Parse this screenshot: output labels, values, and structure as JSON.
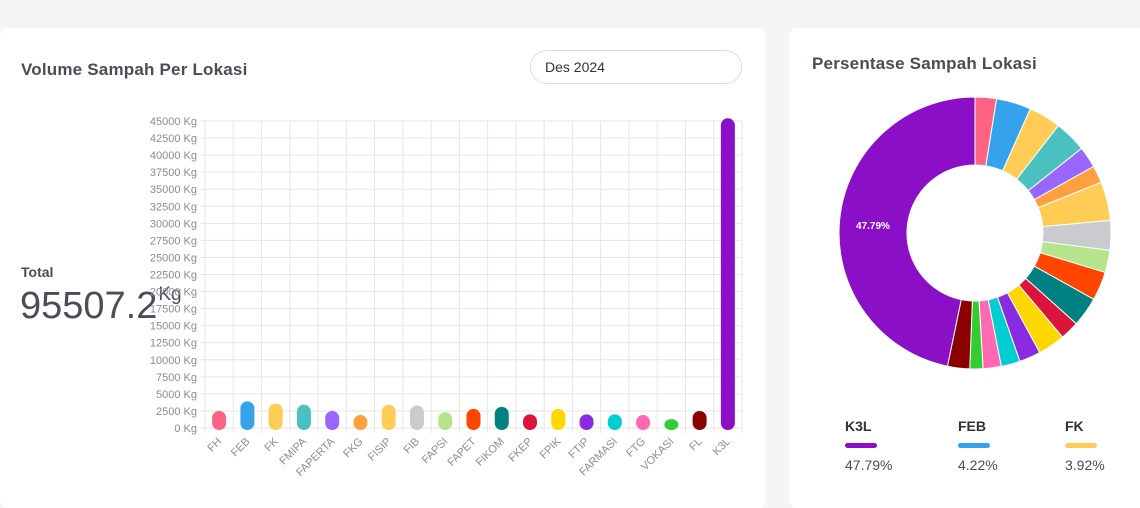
{
  "volume_card": {
    "title": "Volume Sampah Per Lokasi",
    "month_selected": "Des 2024",
    "total_label": "Total",
    "total_value": "95507.2",
    "total_unit": "Kg"
  },
  "percent_card": {
    "title": "Persentase Sampah Lokasi",
    "center_label": "47.79%",
    "legend": [
      {
        "name": "K3L",
        "percent": "47.79%",
        "color": "#8b0fc6"
      },
      {
        "name": "FEB",
        "percent": "4.22%",
        "color": "#36a2eb"
      },
      {
        "name": "FK",
        "percent": "3.92%",
        "color": "#ffcd56"
      }
    ]
  },
  "chart_data": [
    {
      "type": "bar",
      "title": "Volume Sampah Per Lokasi",
      "categories": [
        "FH",
        "FEB",
        "FK",
        "FMIPA",
        "FAPERTA",
        "FKG",
        "FISIP",
        "FIB",
        "FAPSI",
        "FAPET",
        "FIKOM",
        "FKEP",
        "FPIK",
        "FTIP",
        "FARMASI",
        "FTG",
        "VOKASI",
        "FL",
        "K3L"
      ],
      "values": [
        2500,
        3900,
        3600,
        3400,
        2500,
        1900,
        3400,
        3300,
        2300,
        2800,
        3100,
        2000,
        2800,
        2000,
        2000,
        1900,
        1300,
        2500,
        45400
      ],
      "colors": [
        "#ff6384",
        "#36a2eb",
        "#ffcd56",
        "#4bc0c0",
        "#9966ff",
        "#ff9f40",
        "#ffcd56",
        "#c9cbcf",
        "#b5e48c",
        "#ff4500",
        "#008080",
        "#dc143c",
        "#ffd700",
        "#8a2be2",
        "#00ced1",
        "#ff69b4",
        "#32cd32",
        "#8b0000",
        "#8b0fc6"
      ],
      "ylim": [
        0,
        45000
      ],
      "ytick_step": 2500,
      "ytick_suffix": " Kg",
      "grid": true
    },
    {
      "type": "pie",
      "title": "Persentase Sampah Lokasi",
      "labels": [
        "FH",
        "FEB",
        "FK",
        "FMIPA",
        "FAPERTA",
        "FKG",
        "FISIP",
        "FIB",
        "FAPSI",
        "FAPET",
        "FIKOM",
        "FKEP",
        "FPIK",
        "FTIP",
        "FARMASI",
        "FTG",
        "VOKASI",
        "FL",
        "K3L"
      ],
      "percentages": [
        2.6,
        4.22,
        3.92,
        3.9,
        2.6,
        2.1,
        4.7,
        3.6,
        2.7,
        3.5,
        3.6,
        2.3,
        3.3,
        2.6,
        2.3,
        2.2,
        1.6,
        2.69,
        47.79
      ],
      "colors": [
        "#ff6384",
        "#36a2eb",
        "#ffcd56",
        "#4bc0c0",
        "#9966ff",
        "#ff9f40",
        "#ffcd56",
        "#c9cbcf",
        "#b5e48c",
        "#ff4500",
        "#008080",
        "#dc143c",
        "#ffd700",
        "#8a2be2",
        "#00ced1",
        "#ff69b4",
        "#32cd32",
        "#8b0000",
        "#8b0fc6"
      ],
      "legend_position": "bottom"
    }
  ]
}
